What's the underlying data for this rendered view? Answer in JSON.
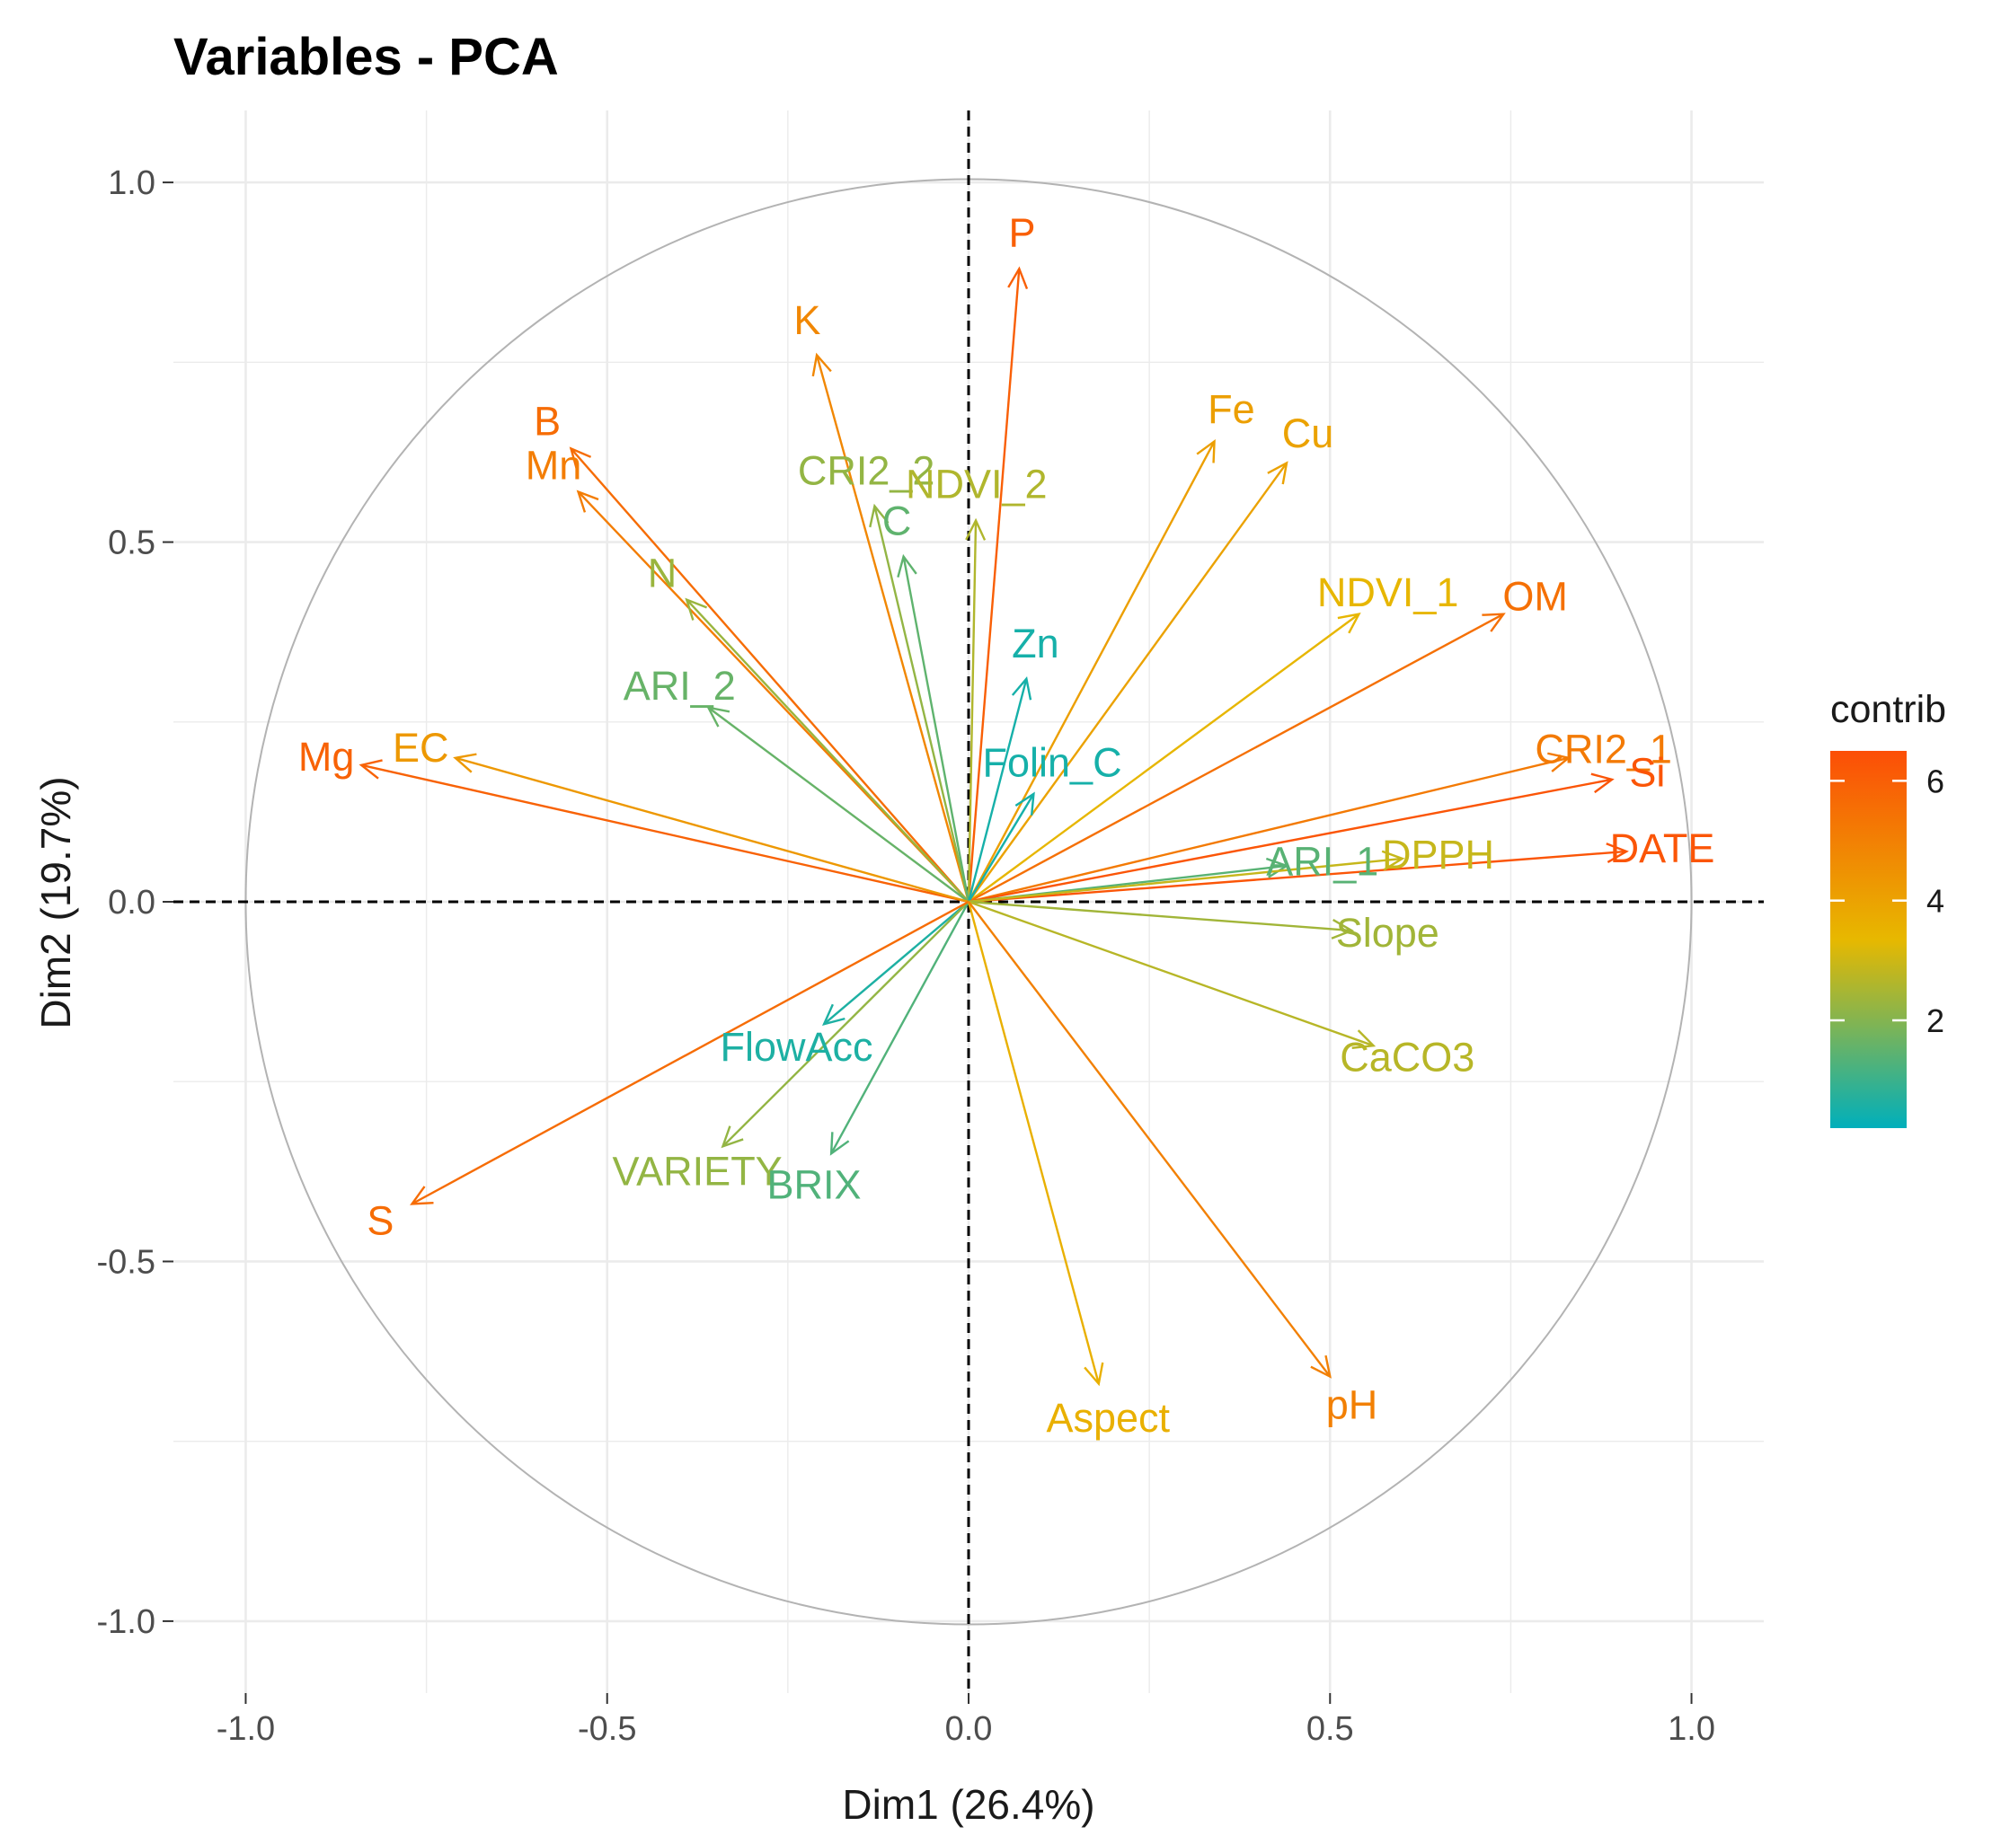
{
  "chart_data": {
    "type": "pca-variable-correlation-circle",
    "title": "Variables - PCA",
    "xlabel": "Dim1 (26.4%)",
    "ylabel": "Dim2 (19.7%)",
    "xlim": [
      -1.1,
      1.1
    ],
    "ylim": [
      -1.1,
      1.1
    ],
    "x_ticks": [
      -1.0,
      -0.5,
      0.0,
      0.5,
      1.0
    ],
    "x_tick_labels": [
      "-1.0",
      "-0.5",
      "0.0",
      "0.5",
      "1.0"
    ],
    "y_ticks": [
      1.0,
      0.5,
      0.0,
      -0.5,
      -1.0
    ],
    "y_tick_labels": [
      "1.0",
      "0.5",
      "0.0",
      "-0.5",
      "-1.0"
    ],
    "grid": true,
    "unit_circle": true,
    "legend": {
      "title": "contrib",
      "placement": "right",
      "min": 0.2,
      "max": 6.5,
      "ticks": [
        2,
        4,
        6
      ],
      "tick_labels": [
        "2",
        "4",
        "6"
      ],
      "color_stops": [
        "#00AFBB",
        "#E7B800",
        "#FC4E07"
      ]
    },
    "variables": [
      {
        "name": "P",
        "x": 0.07,
        "y": 0.88,
        "contrib": 6.0,
        "label": "P"
      },
      {
        "name": "K",
        "x": -0.21,
        "y": 0.76,
        "contrib": 4.8,
        "label": "K"
      },
      {
        "name": "B",
        "x": -0.55,
        "y": 0.63,
        "contrib": 5.6,
        "label": "B"
      },
      {
        "name": "Mn",
        "x": -0.54,
        "y": 0.57,
        "contrib": 5.1,
        "label": "Mn"
      },
      {
        "name": "CRI2_2",
        "x": -0.13,
        "y": 0.55,
        "contrib": 2.2,
        "label": "CRI2_2"
      },
      {
        "name": "NDVI_2",
        "x": 0.01,
        "y": 0.53,
        "contrib": 2.6,
        "label": "NDVI_2"
      },
      {
        "name": "C",
        "x": -0.09,
        "y": 0.48,
        "contrib": 1.5,
        "label": "C"
      },
      {
        "name": "N",
        "x": -0.39,
        "y": 0.42,
        "contrib": 2.3,
        "label": "N"
      },
      {
        "name": "Fe",
        "x": 0.34,
        "y": 0.64,
        "contrib": 4.1,
        "label": "Fe"
      },
      {
        "name": "Cu",
        "x": 0.44,
        "y": 0.61,
        "contrib": 4.0,
        "label": "Cu"
      },
      {
        "name": "NDVI_1",
        "x": 0.54,
        "y": 0.4,
        "contrib": 3.4,
        "label": "NDVI_1"
      },
      {
        "name": "OM",
        "x": 0.74,
        "y": 0.4,
        "contrib": 5.5,
        "label": "OM"
      },
      {
        "name": "Zn",
        "x": 0.08,
        "y": 0.31,
        "contrib": 0.5,
        "label": "Zn"
      },
      {
        "name": "ARI_2",
        "x": -0.36,
        "y": 0.27,
        "contrib": 1.6,
        "label": "ARI_2"
      },
      {
        "name": "Folin_C",
        "x": 0.09,
        "y": 0.15,
        "contrib": 0.5,
        "label": "Folin_C"
      },
      {
        "name": "Mg",
        "x": -0.84,
        "y": 0.19,
        "contrib": 5.9,
        "label": "Mg"
      },
      {
        "name": "EC",
        "x": -0.71,
        "y": 0.2,
        "contrib": 4.3,
        "label": "EC"
      },
      {
        "name": "CRI2_1",
        "x": 0.83,
        "y": 0.2,
        "contrib": 5.2,
        "label": "CRI2_1"
      },
      {
        "name": "Si",
        "x": 0.89,
        "y": 0.17,
        "contrib": 6.3,
        "label": "Si"
      },
      {
        "name": "DATE",
        "x": 0.91,
        "y": 0.07,
        "contrib": 6.3,
        "label": "DATE"
      },
      {
        "name": "ARI_1",
        "x": 0.44,
        "y": 0.05,
        "contrib": 1.4,
        "label": "ARI_1"
      },
      {
        "name": "DPPH",
        "x": 0.6,
        "y": 0.06,
        "contrib": 2.9,
        "label": "DPPH"
      },
      {
        "name": "Slope",
        "x": 0.53,
        "y": -0.04,
        "contrib": 2.4,
        "label": "Slope"
      },
      {
        "name": "CaCO3",
        "x": 0.56,
        "y": -0.2,
        "contrib": 2.7,
        "label": "CaCO3"
      },
      {
        "name": "FlowAcc",
        "x": -0.2,
        "y": -0.17,
        "contrib": 0.6,
        "label": "FlowAcc"
      },
      {
        "name": "VARIETY",
        "x": -0.34,
        "y": -0.34,
        "contrib": 2.2,
        "label": "VARIETY"
      },
      {
        "name": "BRIX",
        "x": -0.19,
        "y": -0.35,
        "contrib": 1.3,
        "label": "BRIX"
      },
      {
        "name": "S",
        "x": -0.77,
        "y": -0.42,
        "contrib": 5.6,
        "label": "S"
      },
      {
        "name": "Aspect",
        "x": 0.18,
        "y": -0.67,
        "contrib": 3.6,
        "label": "Aspect"
      },
      {
        "name": "pH",
        "x": 0.5,
        "y": -0.66,
        "contrib": 5.0,
        "label": "pH"
      }
    ]
  }
}
